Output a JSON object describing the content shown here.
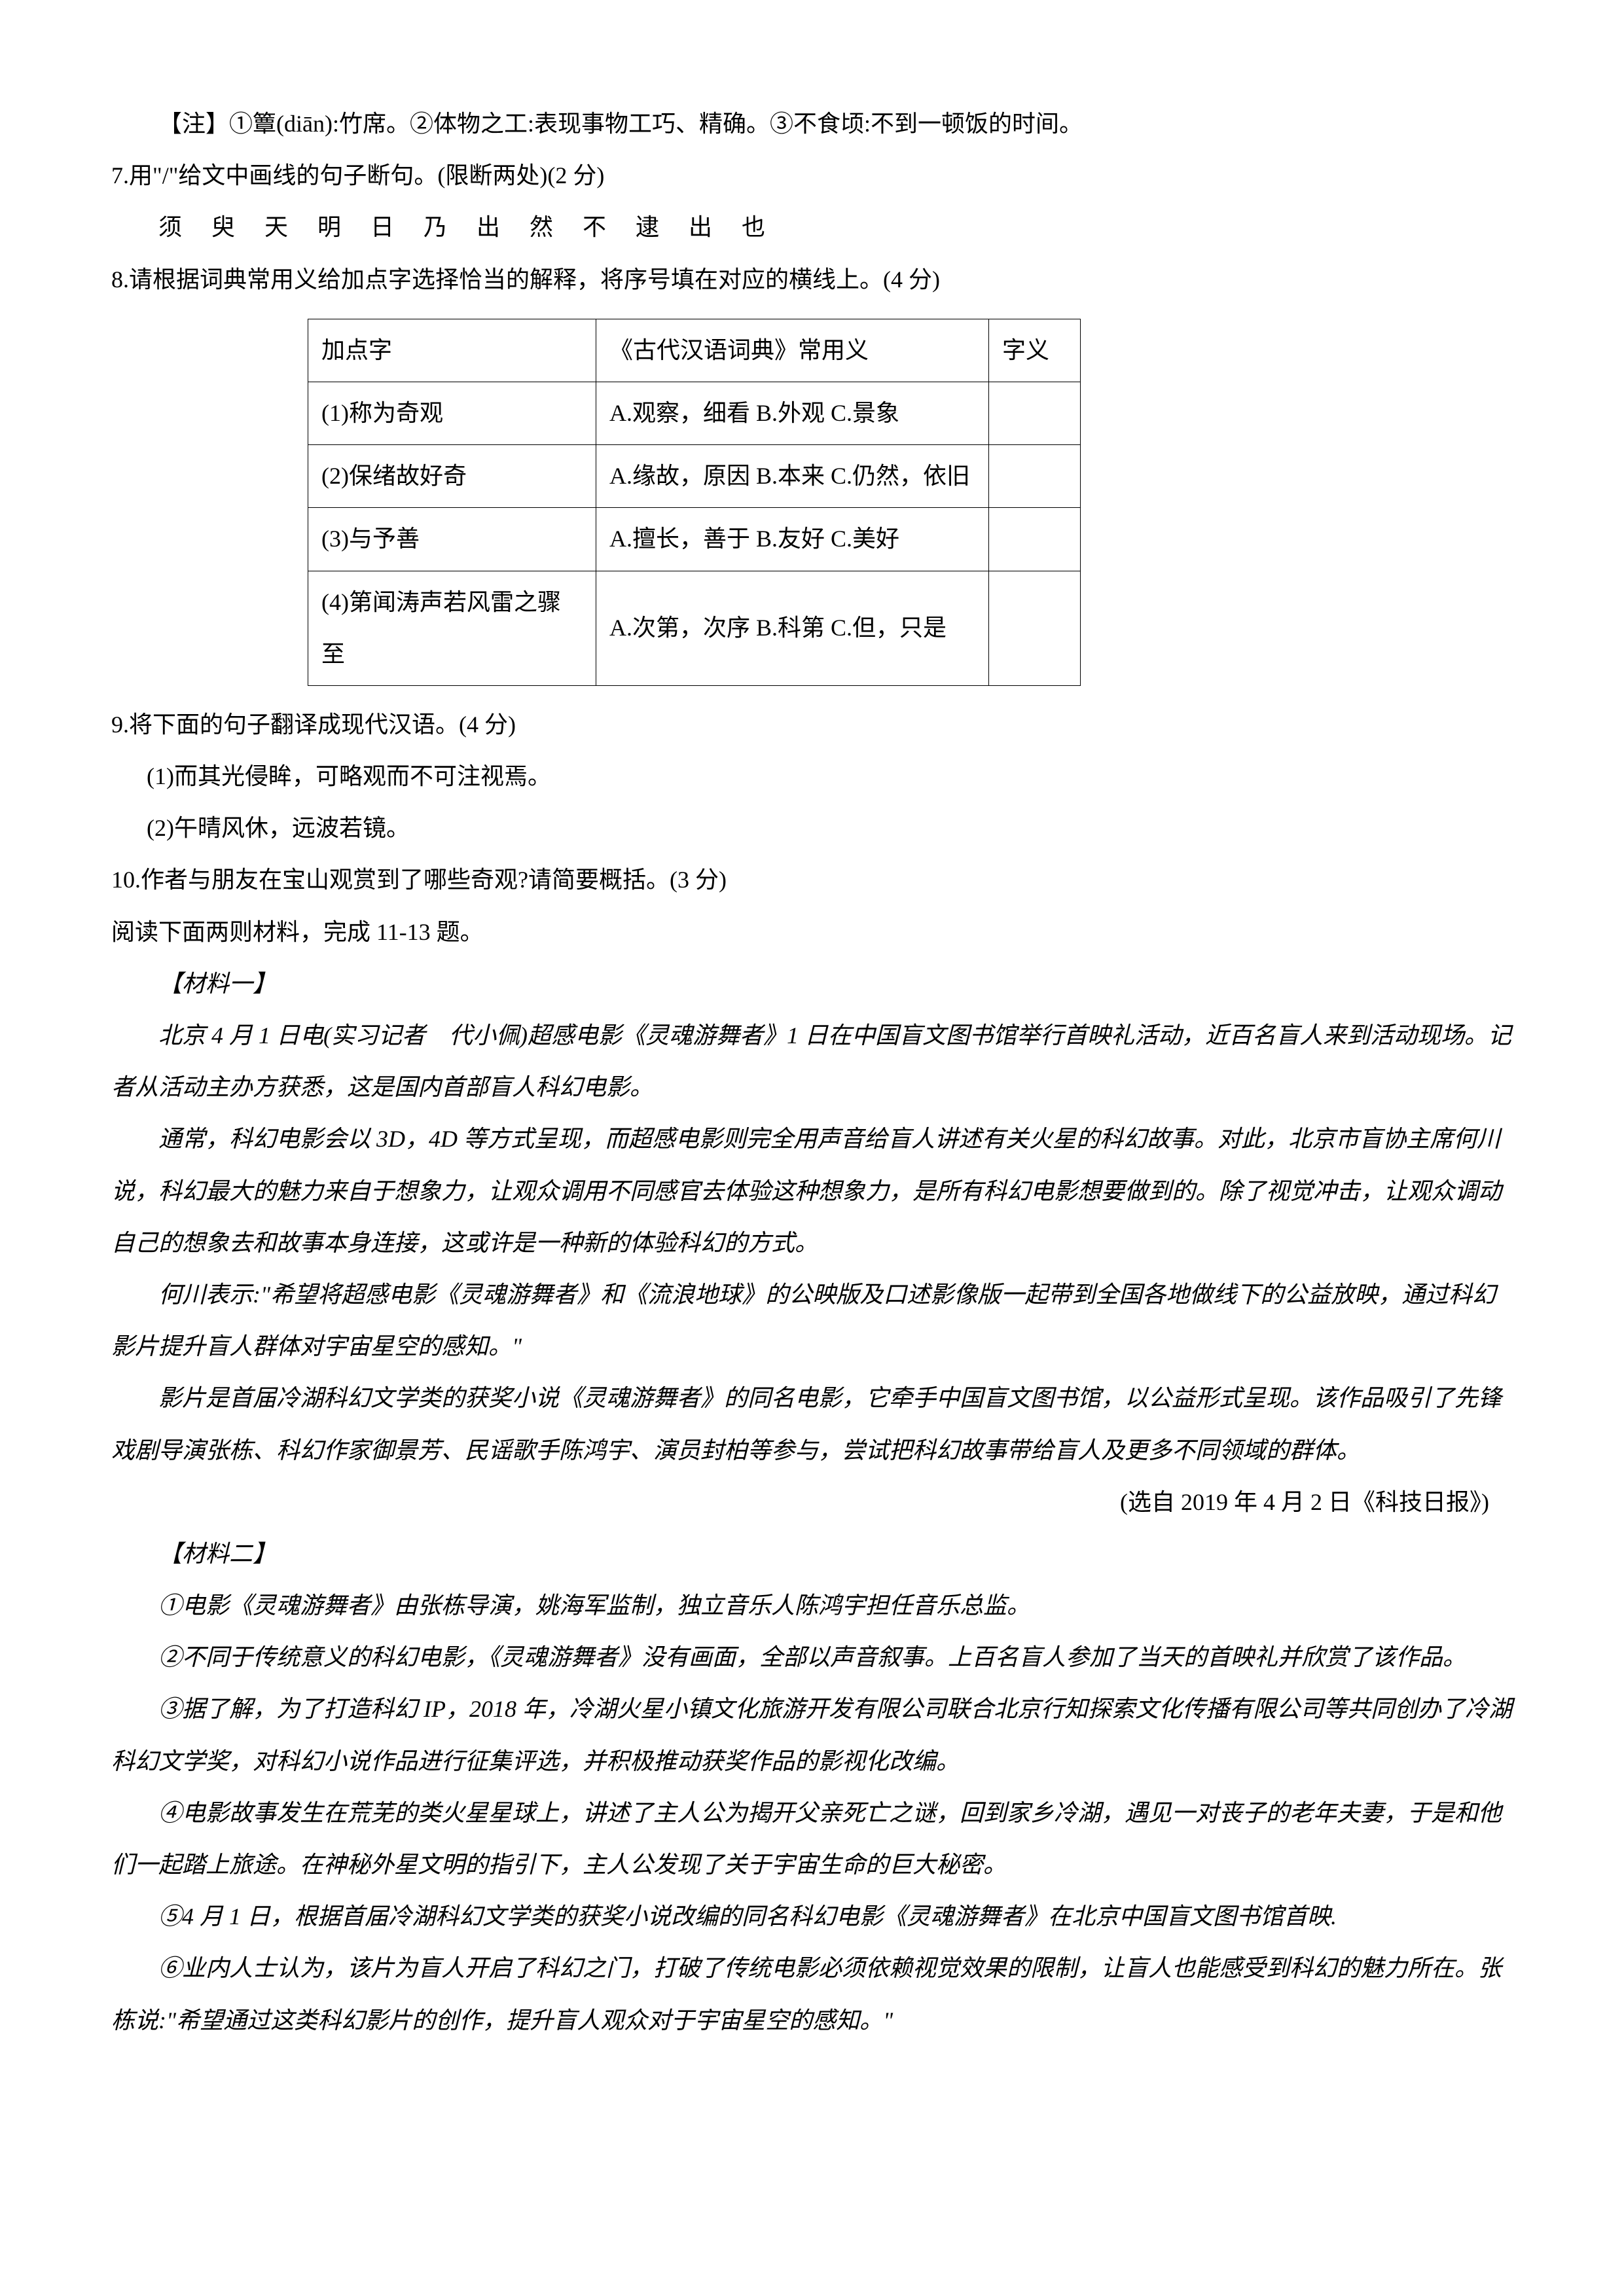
{
  "note": "【注】①簟(diān):竹席。②体物之工:表现事物工巧、精确。③不食顷:不到一顿饭的时间。",
  "q7": {
    "prompt": "7.用\"/\"给文中画线的句子断句。(限断两处)(2 分)",
    "sentence": "须 臾 天 明 日 乃 出 然 不 逮 出 也"
  },
  "q8": {
    "prompt": "8.请根据词典常用义给加点字选择恰当的解释，将序号填在对应的横线上。(4 分)",
    "table": {
      "headers": [
        "加点字",
        "《古代汉语词典》常用义",
        "字义"
      ],
      "rows": [
        [
          "(1)称为奇观",
          "A.观察，细看 B.外观 C.景象",
          ""
        ],
        [
          "(2)保绪故好奇",
          "A.缘故，原因 B.本来 C.仍然，依旧",
          ""
        ],
        [
          "(3)与予善",
          "A.擅长，善于 B.友好 C.美好",
          ""
        ],
        [
          "(4)第闻涛声若风雷之骤至",
          "A.次第，次序 B.科第 C.但，只是",
          ""
        ]
      ]
    }
  },
  "q9": {
    "prompt": "9.将下面的句子翻译成现代汉语。(4 分)",
    "item1": "(1)而其光侵眸，可略观而不可注视焉。",
    "item2": "(2)午晴风休，远波若镜。"
  },
  "q10": "10.作者与朋友在宝山观赏到了哪些奇观?请简要概括。(3 分)",
  "reading_instruction": "阅读下面两则材料，完成 11-13 题。",
  "material1": {
    "title": "【材料一】",
    "p1": "北京 4 月 1 日电(实习记者　代小佩)超感电影《灵魂游舞者》1 日在中国盲文图书馆举行首映礼活动，近百名盲人来到活动现场。记者从活动主办方获悉，这是国内首部盲人科幻电影。",
    "p2": "通常，科幻电影会以 3D，4D 等方式呈现，而超感电影则完全用声音给盲人讲述有关火星的科幻故事。对此，北京市盲协主席何川说，科幻最大的魅力来自于想象力，让观众调用不同感官去体验这种想象力，是所有科幻电影想要做到的。除了视觉冲击，让观众调动自己的想象去和故事本身连接，这或许是一种新的体验科幻的方式。",
    "p3": "何川表示:\"希望将超感电影《灵魂游舞者》和《流浪地球》的公映版及口述影像版一起带到全国各地做线下的公益放映，通过科幻影片提升盲人群体对宇宙星空的感知。\"",
    "p4": "影片是首届冷湖科幻文学类的获奖小说《灵魂游舞者》的同名电影，它牵手中国盲文图书馆，以公益形式呈现。该作品吸引了先锋戏剧导演张栋、科幻作家御景芳、民谣歌手陈鸿宇、演员封柏等参与，尝试把科幻故事带给盲人及更多不同领域的群体。",
    "source": "(选自 2019 年 4 月 2 日《科技日报》)"
  },
  "material2": {
    "title": "【材料二】",
    "p1": "①电影《灵魂游舞者》由张栋导演，姚海军监制，独立音乐人陈鸿宇担任音乐总监。",
    "p2": "②不同于传统意义的科幻电影，《灵魂游舞者》没有画面，全部以声音叙事。上百名盲人参加了当天的首映礼并欣赏了该作品。",
    "p3": "③据了解，为了打造科幻 IP，2018 年，冷湖火星小镇文化旅游开发有限公司联合北京行知探索文化传播有限公司等共同创办了冷湖科幻文学奖，对科幻小说作品进行征集评选，并积极推动获奖作品的影视化改编。",
    "p4": "④电影故事发生在荒芜的类火星星球上，讲述了主人公为揭开父亲死亡之谜，回到家乡冷湖，遇见一对丧子的老年夫妻，于是和他们一起踏上旅途。在神秘外星文明的指引下，主人公发现了关于宇宙生命的巨大秘密。",
    "p5": "⑤4 月 1 日，根据首届冷湖科幻文学类的获奖小说改编的同名科幻电影《灵魂游舞者》在北京中国盲文图书馆首映.",
    "p6": "⑥业内人士认为，该片为盲人开启了科幻之门，打破了传统电影必须依赖视觉效果的限制，让盲人也能感受到科幻的魅力所在。张栋说:\"希望通过这类科幻影片的创作，提升盲人观众对于宇宙星空的感知。\""
  }
}
